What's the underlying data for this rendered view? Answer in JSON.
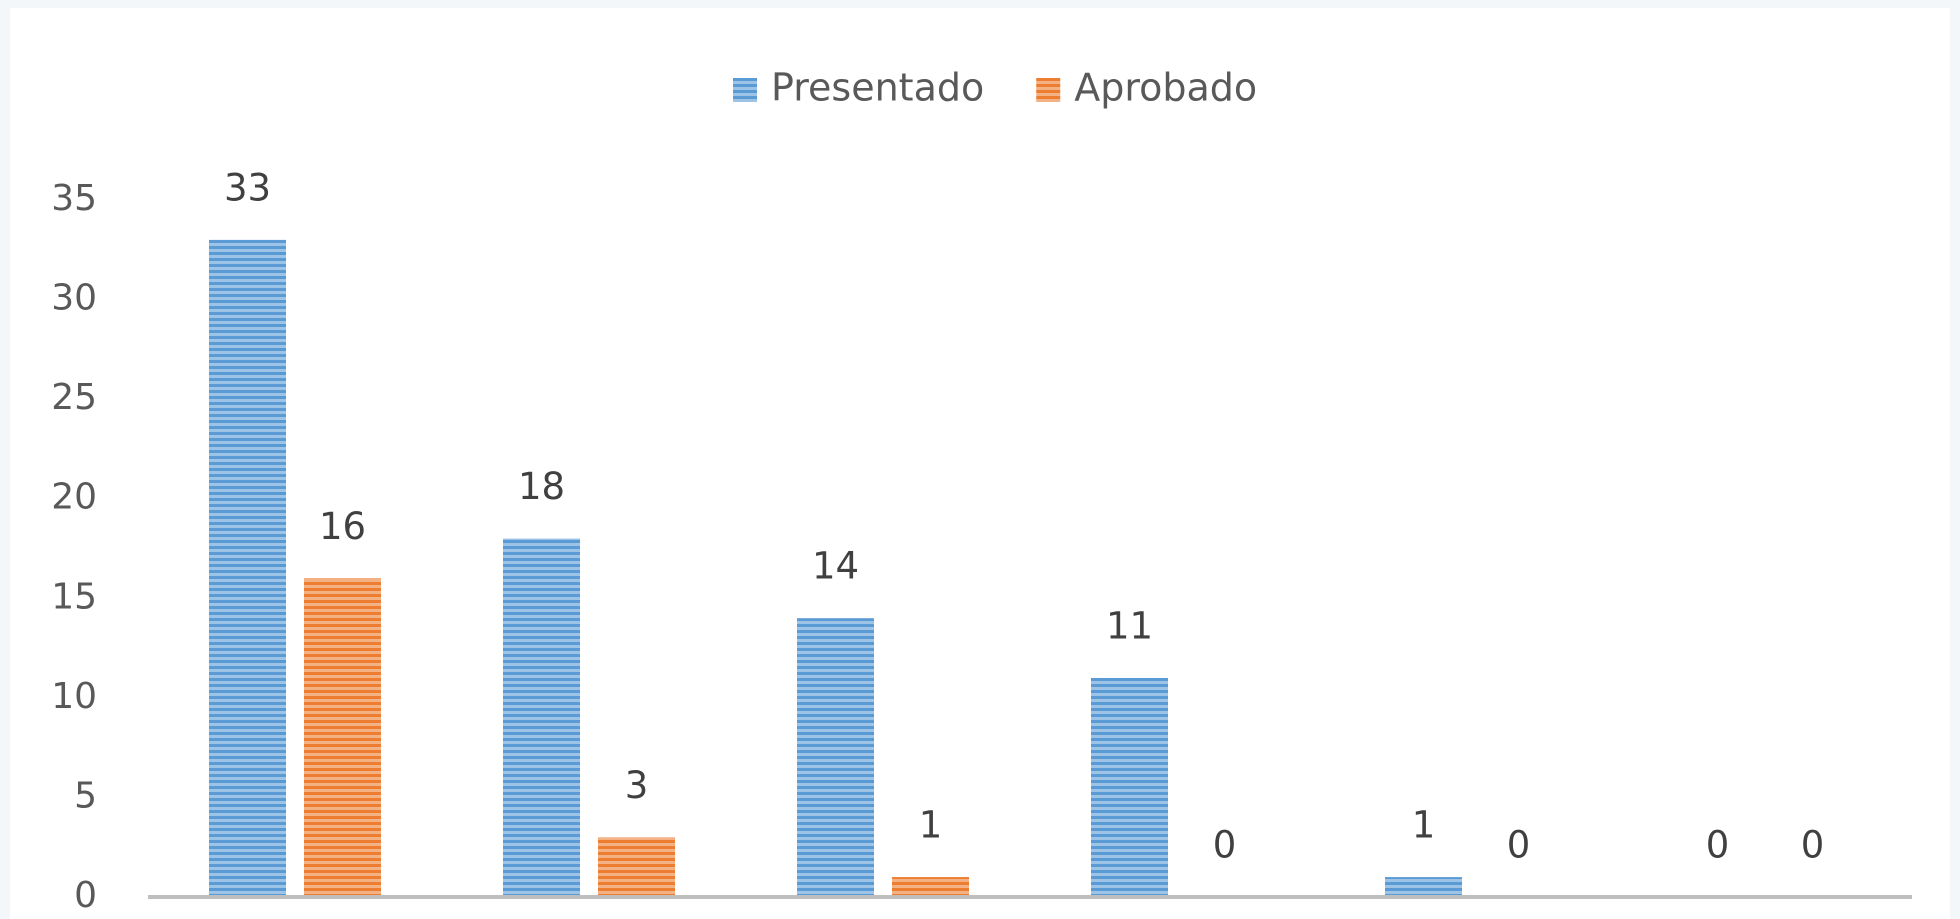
{
  "chart_data": {
    "type": "bar",
    "categories": [
      null,
      null,
      null,
      null,
      null,
      null
    ],
    "series": [
      {
        "name": "Presentado",
        "color": "#5b9bd5",
        "values": [
          33,
          18,
          14,
          11,
          1,
          0
        ]
      },
      {
        "name": "Aprobado",
        "color": "#ed7d31",
        "values": [
          16,
          3,
          1,
          0,
          0,
          0
        ]
      }
    ],
    "ylim": [
      0,
      35
    ],
    "yticks": [
      0,
      5,
      10,
      15,
      20,
      25,
      30,
      35
    ],
    "grid": false,
    "legend": "top"
  }
}
